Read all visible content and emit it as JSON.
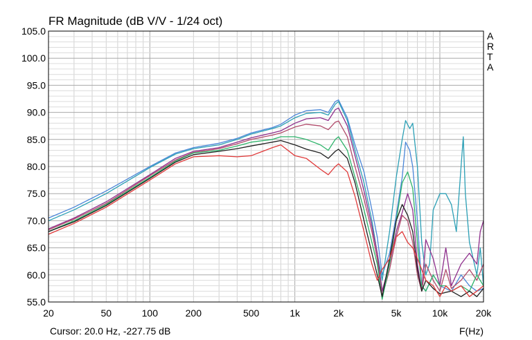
{
  "chart_data": {
    "type": "line",
    "title": "FR Magnitude (dB V/V - 1/24 oct)",
    "side_label": "ARTA",
    "cursor_text": "Cursor: 20.0 Hz, -227.75 dB",
    "xlabel": "F(Hz)",
    "ylabel": "",
    "x_scale": "log",
    "xlim": [
      20,
      20000
    ],
    "ylim": [
      55,
      105
    ],
    "grid": true,
    "y_ticks": [
      "105.0",
      "100.0",
      "95.0",
      "90.0",
      "85.0",
      "80.0",
      "75.0",
      "70.0",
      "65.0",
      "60.0",
      "55.0"
    ],
    "x_tick_values": [
      20,
      50,
      100,
      200,
      500,
      1000,
      2000,
      5000,
      10000,
      20000
    ],
    "x_tick_labels": [
      "20",
      "50",
      "100",
      "200",
      "500",
      "1k",
      "2k",
      "5k",
      "10k",
      "20k"
    ],
    "series": [
      {
        "color": "#4a86d8",
        "x": [
          20,
          30,
          50,
          100,
          150,
          200,
          300,
          400,
          500,
          700,
          800,
          1000,
          1200,
          1500,
          1700,
          1900,
          2000,
          2300,
          2600,
          3000,
          3400,
          3700,
          4000,
          4500,
          5000,
          5500,
          5800,
          6200,
          6500,
          7000,
          7500,
          8000,
          9000,
          10000,
          12000,
          14000,
          16000,
          18000,
          20000
        ],
        "y": [
          70.5,
          72.5,
          75.5,
          80.0,
          82.5,
          83.5,
          84.3,
          85.2,
          86.2,
          87.2,
          87.8,
          89.5,
          90.3,
          90.5,
          90.0,
          92.0,
          92.3,
          89.0,
          84.0,
          79.0,
          72.0,
          67.0,
          60.0,
          64.0,
          71.0,
          78.0,
          84.5,
          83.0,
          80.0,
          70.0,
          58.0,
          57.0,
          60.0,
          58.0,
          57.0,
          60.0,
          58.0,
          57.0,
          57.5
        ]
      },
      {
        "color": "#2b9fb5",
        "x": [
          20,
          30,
          50,
          100,
          150,
          200,
          300,
          400,
          500,
          700,
          800,
          1000,
          1200,
          1500,
          1700,
          1900,
          2000,
          2300,
          2600,
          3000,
          3400,
          3700,
          4000,
          4500,
          5000,
          5500,
          5800,
          6200,
          6500,
          7000,
          7500,
          8000,
          8500,
          9000,
          10000,
          11000,
          12000,
          13000,
          14000,
          14500,
          15000,
          16000,
          18000,
          19000,
          20000
        ],
        "y": [
          70.0,
          72.0,
          75.0,
          79.8,
          82.3,
          83.3,
          84.0,
          85.0,
          86.0,
          87.0,
          87.5,
          89.0,
          89.8,
          90.0,
          89.5,
          91.5,
          92.0,
          88.5,
          83.0,
          77.0,
          70.0,
          64.0,
          59.0,
          68.0,
          78.0,
          85.0,
          88.5,
          87.0,
          88.0,
          80.0,
          66.0,
          60.0,
          62.0,
          72.0,
          75.0,
          75.0,
          73.0,
          68.0,
          80.0,
          85.5,
          75.0,
          66.0,
          60.0,
          65.0,
          58.0
        ]
      },
      {
        "color": "#8e2e8c",
        "x": [
          20,
          30,
          50,
          100,
          150,
          200,
          300,
          400,
          500,
          700,
          800,
          1000,
          1200,
          1500,
          1700,
          1900,
          2000,
          2300,
          2600,
          3000,
          3400,
          3700,
          4000,
          4500,
          5000,
          5500,
          6000,
          6500,
          7000,
          7500,
          8000,
          9000,
          10000,
          11000,
          12000,
          14000,
          16000,
          18000,
          19000,
          20000
        ],
        "y": [
          68.5,
          70.5,
          73.5,
          78.5,
          81.5,
          82.8,
          83.5,
          84.5,
          85.3,
          86.2,
          86.6,
          88.0,
          88.8,
          89.0,
          88.5,
          90.5,
          90.8,
          87.5,
          82.0,
          75.5,
          69.0,
          64.0,
          57.0,
          62.0,
          68.0,
          71.5,
          75.0,
          72.0,
          62.0,
          57.0,
          66.5,
          63.0,
          58.0,
          65.0,
          58.0,
          62.0,
          64.0,
          62.0,
          68.0,
          70.0
        ]
      },
      {
        "color": "#b04a6a",
        "x": [
          20,
          30,
          50,
          100,
          150,
          200,
          300,
          400,
          500,
          700,
          800,
          1000,
          1200,
          1500,
          1700,
          1900,
          2000,
          2300,
          2600,
          3000,
          3400,
          3700,
          4000,
          4500,
          5000,
          5500,
          6000,
          6500,
          7000,
          7500,
          8000,
          9000,
          10000,
          11000,
          12000,
          14000,
          16000,
          18000,
          20000
        ],
        "y": [
          68.3,
          70.3,
          73.2,
          78.3,
          81.2,
          82.6,
          83.3,
          84.2,
          85.0,
          85.8,
          86.2,
          87.3,
          87.8,
          87.5,
          86.8,
          88.2,
          88.4,
          85.5,
          80.0,
          74.0,
          68.0,
          63.0,
          56.0,
          61.0,
          67.0,
          71.0,
          70.0,
          66.0,
          60.0,
          57.0,
          62.0,
          59.0,
          57.0,
          61.0,
          57.5,
          59.0,
          61.0,
          59.0,
          62.0
        ]
      },
      {
        "color": "#2db36a",
        "x": [
          20,
          30,
          50,
          100,
          150,
          200,
          300,
          400,
          500,
          700,
          800,
          1000,
          1200,
          1500,
          1700,
          1900,
          2000,
          2300,
          2600,
          3000,
          3400,
          3700,
          4000,
          4500,
          5000,
          5500,
          6000,
          6500,
          7000,
          7500,
          8000,
          9000,
          10000,
          11000,
          12000,
          14000,
          16000,
          18000,
          20000
        ],
        "y": [
          68.0,
          70.0,
          73.0,
          78.0,
          81.0,
          82.5,
          83.0,
          83.8,
          84.5,
          85.0,
          85.5,
          85.5,
          85.0,
          84.0,
          83.0,
          85.0,
          85.5,
          83.0,
          78.0,
          72.0,
          66.0,
          62.0,
          55.5,
          62.0,
          70.0,
          77.0,
          79.0,
          76.0,
          66.0,
          58.0,
          57.0,
          60.0,
          58.0,
          58.0,
          57.0,
          58.0,
          57.0,
          60.0,
          58.0
        ]
      },
      {
        "color": "#1f1f1f",
        "x": [
          20,
          30,
          50,
          100,
          150,
          200,
          300,
          400,
          500,
          700,
          800,
          1000,
          1200,
          1500,
          1700,
          1900,
          2000,
          2300,
          2600,
          3000,
          3400,
          3700,
          4000,
          4500,
          5000,
          5500,
          6000,
          6500,
          7000,
          7500,
          8000,
          9000,
          10000,
          12000,
          14000,
          16000,
          18000,
          20000
        ],
        "y": [
          68.0,
          69.8,
          72.8,
          77.8,
          80.8,
          82.2,
          82.8,
          83.3,
          83.8,
          84.5,
          84.8,
          84.0,
          83.2,
          82.5,
          81.5,
          82.8,
          83.2,
          81.5,
          77.0,
          70.0,
          64.0,
          60.0,
          56.0,
          63.0,
          70.0,
          73.0,
          71.0,
          68.0,
          61.0,
          57.0,
          59.0,
          57.5,
          56.5,
          57.0,
          56.0,
          57.0,
          56.0,
          57.5
        ]
      },
      {
        "color": "#e03a3a",
        "x": [
          20,
          30,
          50,
          100,
          150,
          200,
          300,
          400,
          500,
          700,
          800,
          1000,
          1200,
          1500,
          1700,
          1900,
          2000,
          2300,
          2600,
          3000,
          3400,
          3700,
          4000,
          4500,
          5000,
          5500,
          6000,
          6500,
          7000,
          7500,
          8000,
          9000,
          10000,
          11000,
          12000,
          14000,
          16000,
          18000,
          20000
        ],
        "y": [
          67.5,
          69.5,
          72.5,
          77.5,
          80.5,
          81.8,
          82.0,
          81.8,
          82.0,
          83.5,
          84.0,
          82.0,
          81.5,
          79.5,
          78.5,
          80.0,
          80.5,
          79.0,
          74.5,
          68.0,
          62.0,
          59.0,
          61.0,
          63.0,
          67.0,
          68.0,
          66.0,
          65.0,
          63.0,
          61.0,
          59.0,
          58.0,
          56.0,
          58.0,
          57.0,
          58.0,
          56.0,
          57.0,
          58.0
        ]
      }
    ]
  }
}
